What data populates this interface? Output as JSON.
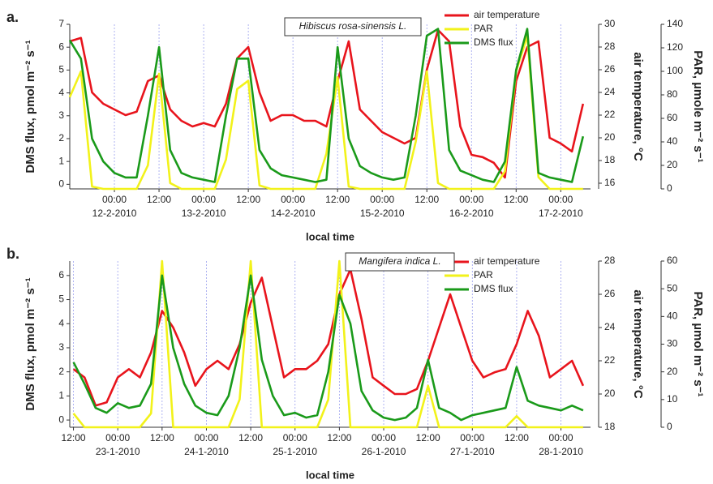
{
  "chart_data": [
    {
      "type": "line",
      "panel_label": "a.",
      "annotation": "Hibiscus rosa-sinensis L.",
      "xlabel": "local time",
      "ylabel": "DMS flux, pmol m⁻² s⁻¹",
      "y2label": "air temperature, °C",
      "y3label": "PAR, µmole m⁻² s⁻¹",
      "x": [
        0,
        3,
        6,
        9,
        12,
        15,
        18,
        21,
        24,
        27,
        30,
        33,
        36,
        39,
        42,
        45,
        48,
        51,
        54,
        57,
        60,
        63,
        66,
        69,
        72,
        75,
        78,
        81,
        84,
        87,
        90,
        93,
        96,
        99,
        102,
        105,
        108,
        111,
        114,
        117,
        120,
        123,
        126,
        129,
        132,
        135,
        138
      ],
      "xlim": [
        0,
        140
      ],
      "xticks": [
        {
          "value": 12,
          "label": "00:00"
        },
        {
          "value": 24,
          "label": "12:00"
        },
        {
          "value": 36,
          "label": "00:00"
        },
        {
          "value": 48,
          "label": "12:00"
        },
        {
          "value": 60,
          "label": "00:00"
        },
        {
          "value": 72,
          "label": "12:00"
        },
        {
          "value": 84,
          "label": "00:00"
        },
        {
          "value": 96,
          "label": "12:00"
        },
        {
          "value": 108,
          "label": "00:00"
        },
        {
          "value": 120,
          "label": "12:00"
        },
        {
          "value": 132,
          "label": "00:00"
        }
      ],
      "xdates": [
        {
          "value": 12,
          "label": "12-2-2010"
        },
        {
          "value": 36,
          "label": "13-2-2010"
        },
        {
          "value": 60,
          "label": "14-2-2010"
        },
        {
          "value": 84,
          "label": "15-2-2010"
        },
        {
          "value": 108,
          "label": "16-2-2010"
        },
        {
          "value": 132,
          "label": "17-2-2010"
        }
      ],
      "xgrid": true,
      "ylim": [
        -0.2,
        7
      ],
      "yticks": [
        0,
        1,
        2,
        3,
        4,
        5,
        6,
        7
      ],
      "y2lim": [
        15.5,
        30
      ],
      "y2ticks": [
        16,
        18,
        20,
        22,
        24,
        26,
        28,
        30
      ],
      "y3lim": [
        0,
        140
      ],
      "y3ticks": [
        0,
        20,
        40,
        60,
        80,
        100,
        120,
        140
      ],
      "series": [
        {
          "name": "air temperature",
          "color": "#e8141c",
          "axis": "y2",
          "values": [
            28.5,
            28.8,
            24,
            23,
            22.5,
            22,
            22.3,
            25,
            25.5,
            22.5,
            21.5,
            21,
            21.3,
            21,
            23,
            27,
            28,
            24,
            21.5,
            22,
            22,
            21.5,
            21.5,
            21,
            25,
            28.5,
            22.5,
            21.5,
            20.5,
            20,
            19.5,
            20,
            26,
            29.5,
            28.5,
            21,
            18.5,
            18.3,
            17.8,
            16.5,
            25,
            28,
            28.5,
            20,
            19.5,
            18.8,
            23
          ]
        },
        {
          "name": "PAR",
          "color": "#f2f21a",
          "axis": "y3",
          "values": [
            78,
            100,
            2,
            0,
            0,
            0,
            0,
            20,
            98,
            5,
            0,
            0,
            0,
            0,
            25,
            85,
            92,
            3,
            0,
            0,
            0,
            0,
            0,
            30,
            95,
            2,
            0,
            0,
            0,
            0,
            0,
            40,
            100,
            5,
            0,
            0,
            0,
            0,
            0,
            15,
            100,
            130,
            10,
            0,
            0,
            0,
            0
          ]
        },
        {
          "name": "DMS flux",
          "color": "#1a9a1a",
          "axis": "y",
          "values": [
            6.3,
            5.5,
            2,
            1,
            0.5,
            0.3,
            0.3,
            3,
            6,
            1.5,
            0.5,
            0.3,
            0.2,
            0.1,
            3,
            5.5,
            5.5,
            1.5,
            0.7,
            0.4,
            0.3,
            0.2,
            0.1,
            0.2,
            6,
            2,
            0.8,
            0.5,
            0.3,
            0.2,
            0.3,
            3,
            6.5,
            6.8,
            1.5,
            0.6,
            0.4,
            0.2,
            0.1,
            1,
            5,
            6.8,
            0.5,
            0.3,
            0.2,
            0.1,
            2.1
          ]
        }
      ]
    },
    {
      "type": "line",
      "panel_label": "b.",
      "annotation": "Mangifera indica L.",
      "xlabel": "local time",
      "ylabel": "DMS flux, pmol m⁻² s⁻¹",
      "y2label": "air temperature, °C",
      "y3label": "PAR, µmol m⁻² s⁻¹",
      "x": [
        0,
        3,
        6,
        9,
        12,
        15,
        18,
        21,
        24,
        27,
        30,
        33,
        36,
        39,
        42,
        45,
        48,
        51,
        54,
        57,
        60,
        63,
        66,
        69,
        72,
        75,
        78,
        81,
        84,
        87,
        90,
        93,
        96,
        99,
        102,
        105,
        108,
        111,
        114,
        117,
        120,
        123,
        126,
        129,
        132,
        135,
        138
      ],
      "xlim": [
        -1,
        140
      ],
      "xticks": [
        {
          "value": 0,
          "label": "12:00"
        },
        {
          "value": 12,
          "label": "00:00"
        },
        {
          "value": 24,
          "label": "12:00"
        },
        {
          "value": 36,
          "label": "00:00"
        },
        {
          "value": 48,
          "label": "12:00"
        },
        {
          "value": 60,
          "label": "00:00"
        },
        {
          "value": 72,
          "label": "12:00"
        },
        {
          "value": 84,
          "label": "00:00"
        },
        {
          "value": 96,
          "label": "12:00"
        },
        {
          "value": 108,
          "label": "00:00"
        },
        {
          "value": 120,
          "label": "12:00"
        },
        {
          "value": 132,
          "label": "00:00"
        }
      ],
      "xdates": [
        {
          "value": 12,
          "label": "23-1-2010"
        },
        {
          "value": 36,
          "label": "24-1-2010"
        },
        {
          "value": 60,
          "label": "25-1-2010"
        },
        {
          "value": 84,
          "label": "26-1-2010"
        },
        {
          "value": 108,
          "label": "27-1-2010"
        },
        {
          "value": 132,
          "label": "28-1-2010"
        }
      ],
      "xgrid": true,
      "ylim": [
        -0.3,
        6.6
      ],
      "yticks": [
        0,
        1,
        2,
        3,
        4,
        5,
        6
      ],
      "y2lim": [
        18,
        28
      ],
      "y2ticks": [
        18,
        20,
        22,
        24,
        26,
        28
      ],
      "y3lim": [
        0,
        60
      ],
      "y3ticks": [
        0,
        10,
        20,
        30,
        40,
        50,
        60
      ],
      "series": [
        {
          "name": "air temperature",
          "color": "#e8141c",
          "axis": "y2",
          "values": [
            21.5,
            21,
            19.3,
            19.5,
            21,
            21.5,
            21,
            22.5,
            25,
            24,
            22.5,
            20.5,
            21.5,
            22,
            21.5,
            23,
            25.5,
            27,
            24,
            21,
            21.5,
            21.5,
            22,
            23,
            26,
            27.5,
            24.5,
            21,
            20.5,
            20,
            20,
            20.3,
            22,
            24,
            26,
            24,
            22,
            21,
            21.3,
            21.5,
            23,
            25,
            23.5,
            21,
            21.5,
            22,
            20.5
          ]
        },
        {
          "name": "PAR",
          "color": "#f2f21a",
          "axis": "y3",
          "values": [
            5,
            0,
            0,
            0,
            0,
            0,
            0,
            5,
            60,
            0,
            0,
            0,
            0,
            0,
            0,
            10,
            60,
            0,
            0,
            0,
            0,
            0,
            0,
            10,
            60,
            0,
            0,
            0,
            0,
            0,
            0,
            0,
            15,
            0,
            0,
            0,
            0,
            0,
            0,
            0,
            4,
            0,
            0,
            0,
            0,
            0,
            0
          ]
        },
        {
          "name": "DMS flux",
          "color": "#1a9a1a",
          "axis": "y",
          "values": [
            2.4,
            1.5,
            0.5,
            0.3,
            0.7,
            0.5,
            0.6,
            1.5,
            6,
            3,
            1.5,
            0.6,
            0.3,
            0.2,
            1,
            3,
            6,
            2.5,
            1,
            0.2,
            0.3,
            0.1,
            0.2,
            2,
            5.2,
            4,
            1.2,
            0.4,
            0.1,
            0,
            0.1,
            0.5,
            2.5,
            0.5,
            0.3,
            0,
            0.2,
            0.3,
            0.4,
            0.5,
            2.2,
            0.8,
            0.6,
            0.5,
            0.4,
            0.6,
            0.4
          ]
        }
      ]
    }
  ]
}
